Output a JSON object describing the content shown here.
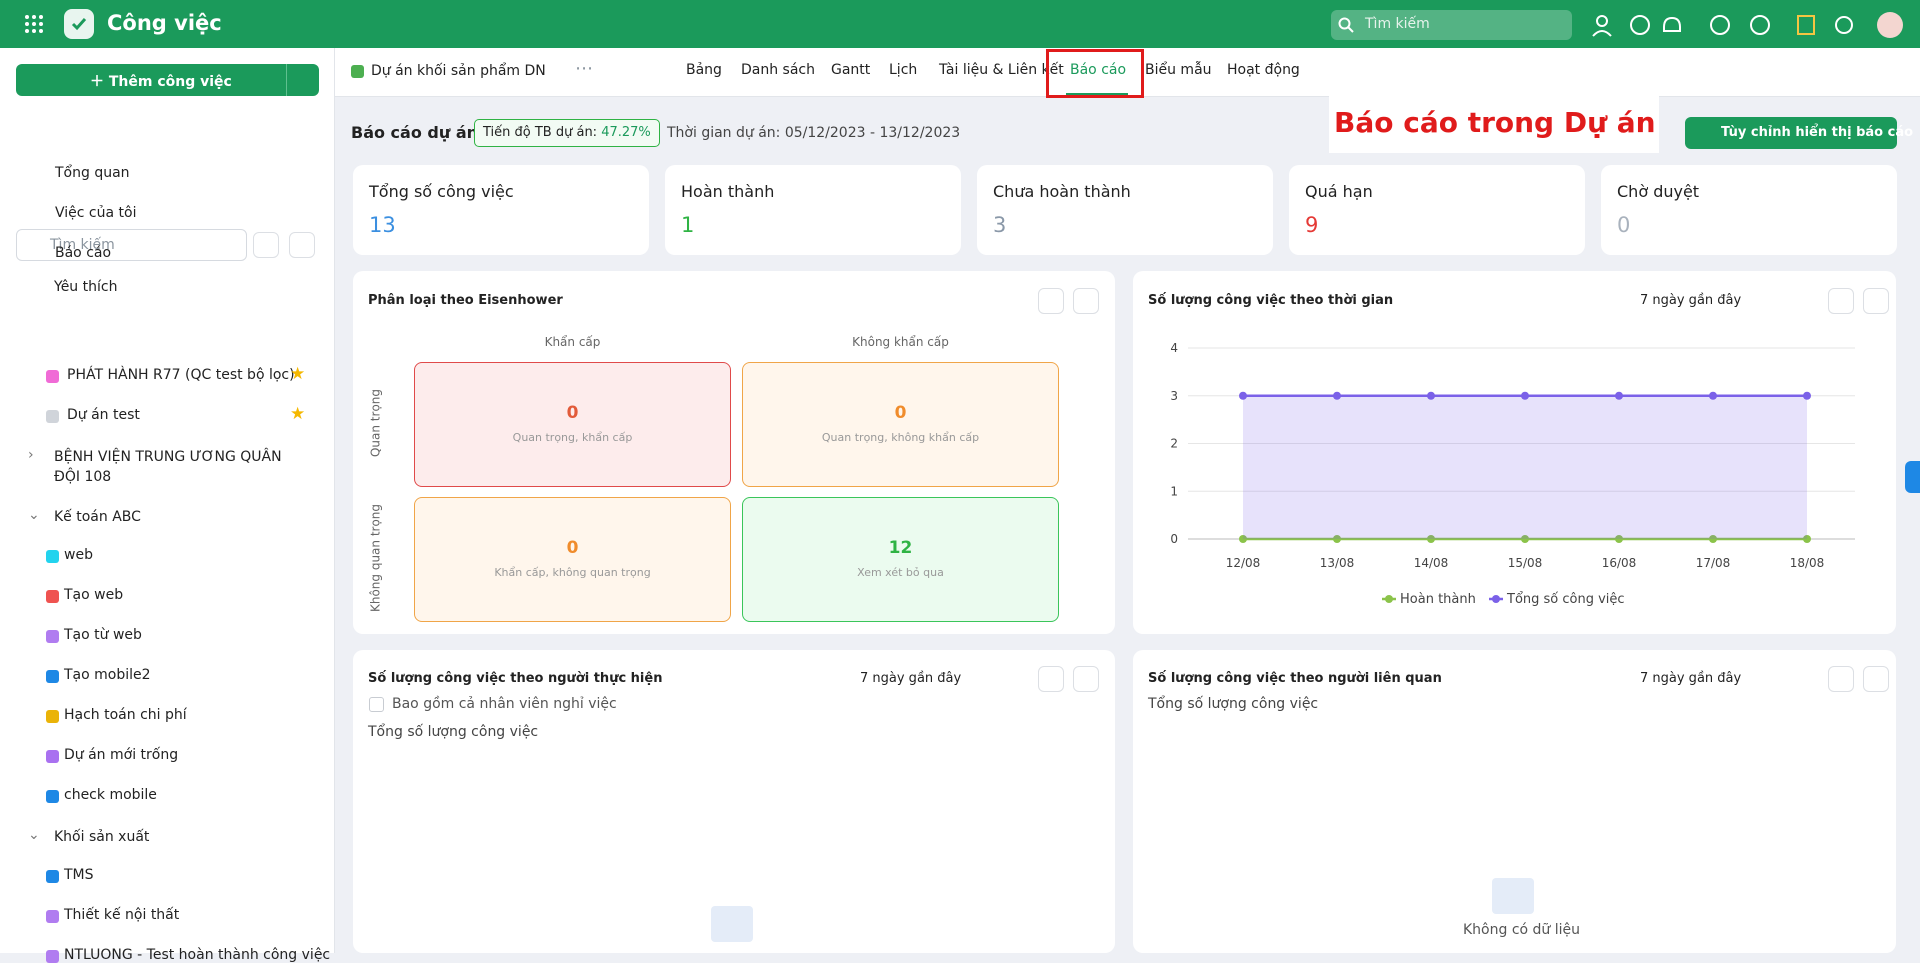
{
  "header": {
    "app_title": "Công việc",
    "search_placeholder": "Tìm kiếm"
  },
  "sidebar": {
    "add_task": "Thêm công việc",
    "nav": [
      "Tổng quan",
      "Việc của tôi",
      "Báo cáo"
    ],
    "search_placeholder": "Tìm kiếm",
    "favorites_title": "Yêu thích",
    "favorites": [
      {
        "label": "PHÁT HÀNH R77 (QC test bộ lọc)",
        "color": "#f06bd6"
      },
      {
        "label": "Dự án test",
        "color": "#d0d4da"
      }
    ],
    "groups": [
      {
        "label": "BỆNH VIỆN TRUNG ƯƠNG QUÂN ĐỘI 108",
        "items": []
      },
      {
        "label": "Kế toán ABC",
        "items": [
          {
            "label": "web",
            "color": "#22d3ee"
          },
          {
            "label": "Tạo web",
            "color": "#ef5350"
          },
          {
            "label": "Tạo từ web",
            "color": "#b07cf0"
          },
          {
            "label": "Tạo mobile2",
            "color": "#1e88e5"
          },
          {
            "label": "Hạch toán chi phí",
            "color": "#eab308"
          },
          {
            "label": "Dự án mới trống",
            "color": "#a971f0"
          },
          {
            "label": "check mobile",
            "color": "#1e88e5"
          }
        ]
      },
      {
        "label": "Khối sản xuất",
        "items": [
          {
            "label": "TMS",
            "color": "#1e88e5"
          },
          {
            "label": "Thiết kế nội thất",
            "color": "#b07cf0"
          },
          {
            "label": "NTLUONG - Test hoàn thành công việc",
            "color": "#b07cf0"
          }
        ]
      }
    ]
  },
  "project": {
    "name": "Dự án khối sản phẩm DN"
  },
  "tabs": [
    "Bảng",
    "Danh sách",
    "Gantt",
    "Lịch",
    "Tài liệu & Liên kết",
    "Báo cáo",
    "Biểu mẫu",
    "Hoạt động"
  ],
  "annotation": "Báo cáo trong Dự án",
  "report": {
    "title": "Báo cáo dự án",
    "progress_label": "Tiến độ TB dự án:",
    "progress_value": "47.27%",
    "period": "Thời gian dự án: 05/12/2023 - 13/12/2023",
    "customize": "Tùy chỉnh hiển thị báo cáo"
  },
  "stats": [
    {
      "label": "Tổng số công việc",
      "value": 13,
      "color": "#3b8fe0"
    },
    {
      "label": "Hoàn thành",
      "value": 1,
      "color": "#2fb344"
    },
    {
      "label": "Chưa hoàn thành",
      "value": 3,
      "color": "#8a98a8"
    },
    {
      "label": "Quá hạn",
      "value": 9,
      "color": "#e53935"
    },
    {
      "label": "Chờ duyệt",
      "value": 0,
      "color": "#a9b2bd"
    }
  ],
  "eisenhower": {
    "title": "Phân loại theo Eisenhower",
    "col_headers": [
      "Khẩn cấp",
      "Không khẩn cấp"
    ],
    "row_headers": [
      "Quan trọng",
      "Không quan trọng"
    ],
    "quadrants": [
      {
        "value": 0,
        "label": "Quan trọng, khẩn cấp"
      },
      {
        "value": 0,
        "label": "Quan trọng, không khẩn cấp"
      },
      {
        "value": 0,
        "label": "Khẩn cấp, không quan trọng"
      },
      {
        "value": 12,
        "label": "Xem xét bỏ qua"
      }
    ]
  },
  "time_chart": {
    "type": "line",
    "title": "Số lượng công việc theo thời gian",
    "filter": "7 ngày gần đây",
    "x": [
      "12/08",
      "13/08",
      "14/08",
      "15/08",
      "16/08",
      "17/08",
      "18/08"
    ],
    "series": [
      {
        "name": "Hoàn thành",
        "color": "#8bc34a",
        "values": [
          0,
          0,
          0,
          0,
          0,
          0,
          0
        ]
      },
      {
        "name": "Tổng số công việc",
        "color": "#7b61e8",
        "values": [
          3,
          3,
          3,
          3,
          3,
          3,
          3
        ],
        "area": true
      }
    ],
    "ylim": [
      0,
      4
    ],
    "yticks": [
      0,
      1,
      2,
      3,
      4
    ],
    "grid": true
  },
  "assignee_panel": {
    "title": "Số lượng công việc theo người thực hiện",
    "filter": "7 ngày gần đây",
    "checkbox": "Bao gồm cả nhân viên nghỉ việc",
    "metric": "Tổng số lượng công việc"
  },
  "related_panel": {
    "title": "Số lượng công việc theo người liên quan",
    "filter": "7 ngày gần đây",
    "metric": "Tổng số lượng công việc",
    "empty": "Không có dữ liệu"
  }
}
